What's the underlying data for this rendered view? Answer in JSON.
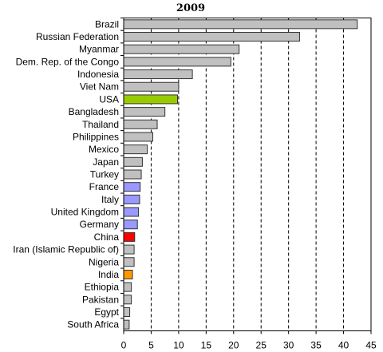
{
  "chart_data": {
    "type": "bar",
    "orientation": "horizontal",
    "title": "2009",
    "categories": [
      "Brazil",
      "Russian Federation",
      "Myanmar",
      "Dem. Rep. of the Congo",
      "Indonesia",
      "Viet Nam",
      "USA",
      "Bangladesh",
      "Thailand",
      "Philippines",
      "Mexico",
      "Japan",
      "Turkey",
      "France",
      "Italy",
      "United Kingdom",
      "Germany",
      "China",
      "Iran (Islamic Republic of)",
      "Nigeria",
      "India",
      "Ethiopia",
      "Pakistan",
      "Egypt",
      "South Africa"
    ],
    "values": [
      42.5,
      32,
      21,
      19.5,
      12.5,
      10,
      9.8,
      7.5,
      6.1,
      5.3,
      4.3,
      3.4,
      3.2,
      3.0,
      2.9,
      2.7,
      2.5,
      2.0,
      1.9,
      1.9,
      1.6,
      1.4,
      1.4,
      1.1,
      1.0
    ],
    "colors": [
      "#c0c0c0",
      "#c0c0c0",
      "#c0c0c0",
      "#c0c0c0",
      "#c0c0c0",
      "#c0c0c0",
      "#99cc00",
      "#c0c0c0",
      "#c0c0c0",
      "#c0c0c0",
      "#c0c0c0",
      "#c0c0c0",
      "#c0c0c0",
      "#9999ff",
      "#9999ff",
      "#9999ff",
      "#9999ff",
      "#ff0000",
      "#c0c0c0",
      "#c0c0c0",
      "#ff9900",
      "#c0c0c0",
      "#c0c0c0",
      "#c0c0c0",
      "#c0c0c0"
    ],
    "xlim": [
      0,
      45
    ],
    "xticks": [
      0,
      5,
      10,
      15,
      20,
      25,
      30,
      35,
      40,
      45
    ],
    "grid": "vertical-dashed",
    "legend": "none",
    "xlabel": "",
    "ylabel": ""
  }
}
